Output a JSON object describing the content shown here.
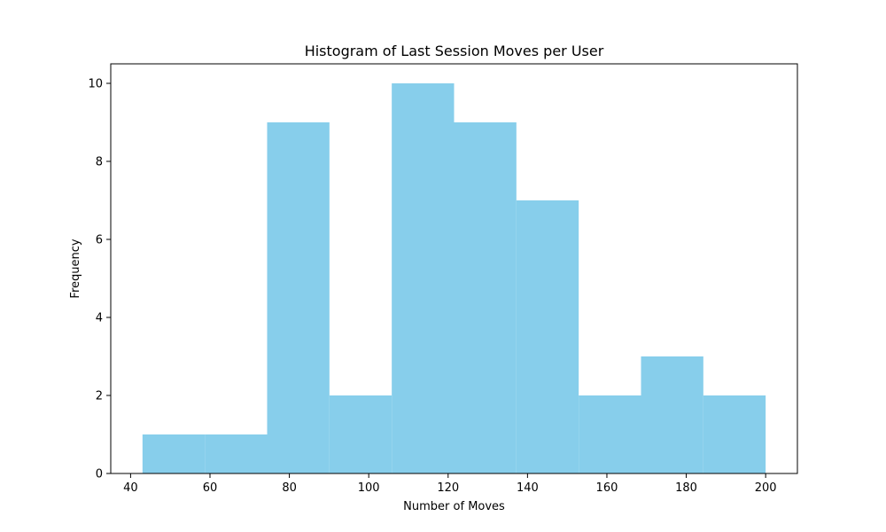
{
  "chart_data": {
    "type": "bar",
    "title": "Histogram of Last Session Moves per User",
    "xlabel": "Number of Moves",
    "ylabel": "Frequency",
    "xlim": [
      35,
      208
    ],
    "ylim": [
      0,
      10.5
    ],
    "xticks": [
      40,
      60,
      80,
      100,
      120,
      140,
      160,
      180,
      200
    ],
    "yticks": [
      0,
      2,
      4,
      6,
      8,
      10
    ],
    "bin_edges": [
      43,
      58.7,
      74.4,
      90.1,
      105.8,
      121.5,
      137.2,
      152.9,
      168.6,
      184.3,
      200
    ],
    "values": [
      1,
      1,
      9,
      2,
      10,
      9,
      7,
      2,
      3,
      2
    ],
    "bar_color": "#87CEEB",
    "grid": false,
    "legend": "none"
  }
}
